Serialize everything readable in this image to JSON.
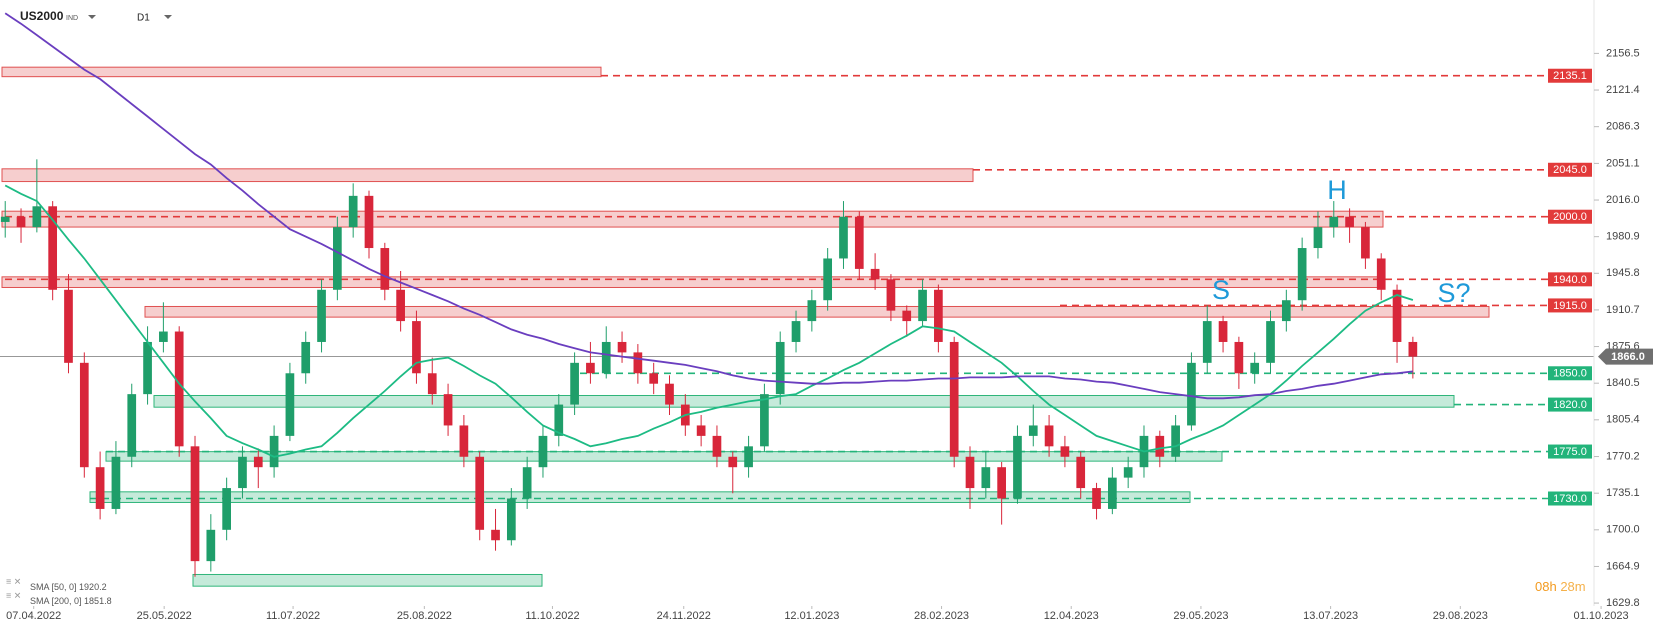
{
  "chart_data": {
    "type": "candlestick",
    "symbol": "US2000",
    "exchange": "IND",
    "timeframe": "D1",
    "up_color": "#1f9e6a",
    "down_color": "#d8263a",
    "ohlc": [
      [
        1995,
        2015,
        1980,
        2000
      ],
      [
        2000,
        2008,
        1975,
        1990
      ],
      [
        1990,
        2055,
        1985,
        2010
      ],
      [
        2010,
        2015,
        1920,
        1930
      ],
      [
        1930,
        1945,
        1850,
        1860
      ],
      [
        1860,
        1870,
        1750,
        1760
      ],
      [
        1760,
        1775,
        1710,
        1720
      ],
      [
        1720,
        1785,
        1715,
        1770
      ],
      [
        1770,
        1840,
        1760,
        1830
      ],
      [
        1830,
        1895,
        1820,
        1880
      ],
      [
        1880,
        1918,
        1870,
        1890
      ],
      [
        1890,
        1895,
        1770,
        1780
      ],
      [
        1780,
        1790,
        1655,
        1670
      ],
      [
        1670,
        1715,
        1660,
        1700
      ],
      [
        1700,
        1750,
        1690,
        1740
      ],
      [
        1740,
        1780,
        1730,
        1770
      ],
      [
        1770,
        1778,
        1740,
        1760
      ],
      [
        1760,
        1800,
        1750,
        1790
      ],
      [
        1790,
        1860,
        1785,
        1850
      ],
      [
        1850,
        1890,
        1840,
        1880
      ],
      [
        1880,
        1940,
        1870,
        1930
      ],
      [
        1930,
        2000,
        1920,
        1990
      ],
      [
        1990,
        2032,
        1980,
        2020
      ],
      [
        2020,
        2025,
        1960,
        1970
      ],
      [
        1970,
        1975,
        1920,
        1930
      ],
      [
        1930,
        1948,
        1890,
        1900
      ],
      [
        1900,
        1910,
        1840,
        1850
      ],
      [
        1850,
        1865,
        1820,
        1830
      ],
      [
        1830,
        1840,
        1790,
        1800
      ],
      [
        1800,
        1810,
        1760,
        1770
      ],
      [
        1770,
        1775,
        1690,
        1700
      ],
      [
        1700,
        1720,
        1680,
        1690
      ],
      [
        1690,
        1740,
        1685,
        1730
      ],
      [
        1730,
        1770,
        1720,
        1760
      ],
      [
        1760,
        1800,
        1750,
        1790
      ],
      [
        1790,
        1830,
        1780,
        1820
      ],
      [
        1820,
        1870,
        1810,
        1860
      ],
      [
        1860,
        1880,
        1840,
        1850
      ],
      [
        1850,
        1895,
        1845,
        1880
      ],
      [
        1880,
        1890,
        1860,
        1870
      ],
      [
        1870,
        1878,
        1840,
        1850
      ],
      [
        1850,
        1860,
        1830,
        1840
      ],
      [
        1840,
        1848,
        1810,
        1820
      ],
      [
        1820,
        1830,
        1790,
        1800
      ],
      [
        1800,
        1810,
        1780,
        1790
      ],
      [
        1790,
        1800,
        1760,
        1770
      ],
      [
        1770,
        1775,
        1735,
        1760
      ],
      [
        1760,
        1790,
        1750,
        1780
      ],
      [
        1780,
        1840,
        1775,
        1830
      ],
      [
        1830,
        1890,
        1820,
        1880
      ],
      [
        1880,
        1910,
        1870,
        1900
      ],
      [
        1900,
        1930,
        1890,
        1920
      ],
      [
        1920,
        1970,
        1910,
        1960
      ],
      [
        1960,
        2015,
        1950,
        2000
      ],
      [
        2000,
        2005,
        1940,
        1950
      ],
      [
        1950,
        1965,
        1930,
        1940
      ],
      [
        1940,
        1945,
        1900,
        1910
      ],
      [
        1910,
        1915,
        1885,
        1900
      ],
      [
        1900,
        1940,
        1895,
        1930
      ],
      [
        1930,
        1935,
        1870,
        1880
      ],
      [
        1880,
        1885,
        1760,
        1770
      ],
      [
        1770,
        1780,
        1720,
        1740
      ],
      [
        1740,
        1775,
        1730,
        1760
      ],
      [
        1760,
        1765,
        1705,
        1730
      ],
      [
        1730,
        1800,
        1725,
        1790
      ],
      [
        1790,
        1820,
        1780,
        1800
      ],
      [
        1800,
        1810,
        1770,
        1780
      ],
      [
        1780,
        1790,
        1760,
        1770
      ],
      [
        1770,
        1775,
        1730,
        1740
      ],
      [
        1740,
        1745,
        1710,
        1720
      ],
      [
        1720,
        1760,
        1715,
        1750
      ],
      [
        1750,
        1770,
        1740,
        1760
      ],
      [
        1760,
        1800,
        1750,
        1790
      ],
      [
        1790,
        1795,
        1760,
        1770
      ],
      [
        1770,
        1810,
        1765,
        1800
      ],
      [
        1800,
        1870,
        1795,
        1860
      ],
      [
        1860,
        1915,
        1850,
        1900
      ],
      [
        1900,
        1905,
        1870,
        1880
      ],
      [
        1880,
        1885,
        1835,
        1850
      ],
      [
        1850,
        1870,
        1840,
        1860
      ],
      [
        1860,
        1910,
        1850,
        1900
      ],
      [
        1900,
        1930,
        1890,
        1920
      ],
      [
        1920,
        1980,
        1910,
        1970
      ],
      [
        1970,
        2005,
        1960,
        1990
      ],
      [
        1990,
        2015,
        1980,
        2000
      ],
      [
        2000,
        2008,
        1975,
        1990
      ],
      [
        1990,
        1995,
        1950,
        1960
      ],
      [
        1960,
        1965,
        1920,
        1930
      ],
      [
        1930,
        1935,
        1860,
        1880
      ],
      [
        1880,
        1885,
        1845,
        1866
      ]
    ],
    "series": [
      {
        "name": "SMA [50, 0]",
        "last": 1920.2,
        "color": "#1dbb84",
        "values": [
          2030,
          2022,
          2015,
          1997,
          1978,
          1960,
          1940,
          1920,
          1900,
          1880,
          1860,
          1840,
          1823,
          1807,
          1790,
          1783,
          1777,
          1770,
          1773,
          1777,
          1780,
          1793,
          1807,
          1820,
          1833,
          1847,
          1860,
          1863,
          1865,
          1857,
          1848,
          1840,
          1827,
          1813,
          1800,
          1793,
          1787,
          1780,
          1783,
          1787,
          1790,
          1797,
          1803,
          1810,
          1813,
          1817,
          1820,
          1823,
          1825,
          1828,
          1830,
          1838,
          1845,
          1853,
          1860,
          1869,
          1878,
          1886,
          1895,
          1893,
          1890,
          1880,
          1870,
          1860,
          1847,
          1833,
          1820,
          1810,
          1800,
          1790,
          1785,
          1780,
          1775,
          1778,
          1780,
          1787,
          1793,
          1800,
          1810,
          1820,
          1830,
          1843,
          1857,
          1870,
          1883,
          1897,
          1910,
          1918,
          1925,
          1920.2
        ]
      },
      {
        "name": "SMA [200, 0]",
        "last": 1851.8,
        "color": "#6a3ebf",
        "values": [
          2195,
          2185,
          2174,
          2163,
          2152,
          2141,
          2132,
          2120,
          2108,
          2096,
          2084,
          2072,
          2060,
          2050,
          2037,
          2025,
          2012,
          2000,
          1988,
          1981,
          1974,
          1966,
          1958,
          1950,
          1943,
          1937,
          1931,
          1925,
          1919,
          1912,
          1906,
          1899,
          1892,
          1887,
          1883,
          1878,
          1874,
          1870,
          1868,
          1866,
          1864,
          1862,
          1860,
          1858,
          1855,
          1852,
          1848,
          1845,
          1843,
          1842,
          1841,
          1840,
          1840,
          1841,
          1841,
          1842,
          1843,
          1843,
          1844,
          1845,
          1845,
          1846,
          1846,
          1846,
          1847,
          1847,
          1847,
          1845,
          1844,
          1842,
          1841,
          1838,
          1835,
          1832,
          1830,
          1828,
          1826,
          1826,
          1827,
          1829,
          1830,
          1833,
          1835,
          1838,
          1840,
          1843,
          1846,
          1849,
          1850,
          1851.8
        ]
      }
    ],
    "levels": [
      {
        "value": 2135.1,
        "color": "#e23a3a"
      },
      {
        "value": 2045,
        "label": "2045.0",
        "color": "#e23a3a"
      },
      {
        "value": 2000,
        "label": "2000.0",
        "color": "#e23a3a"
      },
      {
        "value": 1940,
        "label": "1940.0",
        "color": "#e23a3a"
      },
      {
        "value": 1915,
        "label": "1915.0",
        "color": "#e23a3a"
      },
      {
        "value": 1850,
        "label": "1850.0",
        "color": "#22b47a"
      },
      {
        "value": 1820,
        "label": "1820.0",
        "color": "#22b47a"
      },
      {
        "value": 1775,
        "label": "1775.0",
        "color": "#22b47a"
      },
      {
        "value": 1730,
        "label": "1730.0",
        "color": "#22b47a"
      }
    ],
    "zones": [
      {
        "from": 2134.2,
        "to": 2143.3,
        "color": "#e05050"
      },
      {
        "from": 2033.7,
        "to": 2045.9,
        "color": "#e05050"
      },
      {
        "from": 1990.1,
        "to": 2005.3,
        "color": "#e05050"
      },
      {
        "from": 1932.2,
        "to": 1942.4,
        "color": "#e05050"
      },
      {
        "from": 1903.8,
        "to": 1914,
        "color": "#e05050"
      },
      {
        "from": 1817.5,
        "to": 1828.7,
        "color": "#2fb57a"
      },
      {
        "from": 1765.8,
        "to": 1774.9,
        "color": "#2fb57a"
      },
      {
        "from": 1726.2,
        "to": 1736.4,
        "color": "#2fb57a"
      },
      {
        "from": 1646,
        "to": 1657.2,
        "color": "#2fb57a"
      }
    ],
    "current": {
      "value": 1866,
      "label": "1866.0"
    },
    "annotations": [
      {
        "text": "S"
      },
      {
        "text": "H"
      },
      {
        "text": "S?"
      }
    ],
    "countdown": [
      "08h",
      "28m"
    ],
    "ylim": [
      1627,
      2200
    ],
    "yticks": [
      2156.5,
      2121.4,
      2086.3,
      2051.1,
      {
        "value": 2016,
        "label": "2016.0"
      },
      1980.9,
      1945.8,
      1910.7,
      1875.6,
      1840.5,
      1805.4,
      1770.2,
      1735.1,
      {
        "value": 1700,
        "label": "1700.0"
      },
      1664.9,
      1629.8
    ],
    "xlim": [
      -0.33,
      100.2
    ],
    "xticks": [
      {
        "value": 1.8,
        "label": "07.04.2022"
      },
      {
        "value": 10.05,
        "label": "25.05.2022"
      },
      {
        "value": 18.2,
        "label": "11.07.2022"
      },
      {
        "value": 26.5,
        "label": "25.08.2022"
      },
      {
        "value": 34.6,
        "label": "11.10.2022"
      },
      {
        "value": 42.9,
        "label": "24.11.2022"
      },
      {
        "value": 51,
        "label": "12.01.2023"
      },
      {
        "value": 59.2,
        "label": "28.02.2023"
      },
      {
        "value": 67.4,
        "label": "12.04.2023"
      },
      {
        "value": 75.6,
        "label": "29.05.2023"
      },
      {
        "value": 83.8,
        "label": "13.07.2023"
      },
      {
        "value": 92,
        "label": "29.08.2023"
      },
      {
        "value": 100.9,
        "label": "01.10.2023"
      }
    ]
  }
}
